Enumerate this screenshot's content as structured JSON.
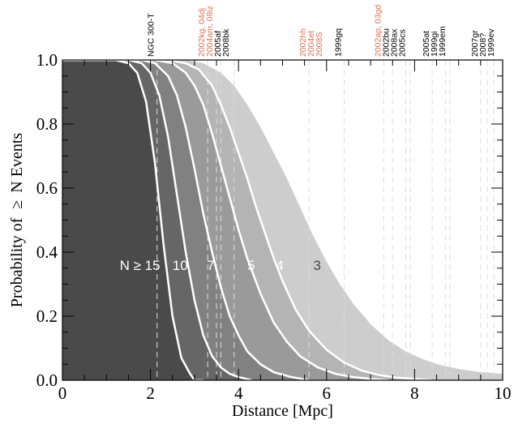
{
  "chart_data": {
    "type": "area",
    "xlabel": "Distance [Mpc]",
    "ylabel_prefix": "Probability of",
    "ylabel_symbol": "≥",
    "ylabel_suffix": "N Events",
    "xlim": [
      0,
      10
    ],
    "ylim": [
      0,
      1
    ],
    "x_ticks": [
      0,
      2,
      4,
      6,
      8,
      10
    ],
    "x_tick_labels": [
      "0",
      "2",
      "4",
      "6",
      "8",
      "10"
    ],
    "y_ticks": [
      0,
      0.2,
      0.4,
      0.6,
      0.8,
      1.0
    ],
    "y_tick_labels": [
      "0.0",
      "0.2",
      "0.4",
      "0.6",
      "0.8",
      "1.0"
    ],
    "x_minor_step": 0.5,
    "y_minor_step": 0.05,
    "curves": [
      {
        "label": "N ≥ 15",
        "label_x": 1.3,
        "label_y": 0.36,
        "fill": "#4a4a4a",
        "label_color": "#ffffff",
        "x": [
          0,
          1.2,
          1.5,
          1.7,
          1.9,
          2.1,
          2.3,
          2.5,
          2.7,
          2.9,
          3.0,
          3.2
        ],
        "y": [
          1.0,
          1.0,
          0.99,
          0.96,
          0.87,
          0.68,
          0.42,
          0.2,
          0.07,
          0.02,
          0.0,
          0.0
        ]
      },
      {
        "label": "10",
        "label_x": 2.5,
        "label_y": 0.36,
        "fill": "#666666",
        "label_color": "#ffffff",
        "x": [
          0,
          1.5,
          1.8,
          2.0,
          2.2,
          2.4,
          2.6,
          2.8,
          3.0,
          3.2,
          3.4,
          3.6,
          3.8,
          4.0,
          4.3
        ],
        "y": [
          1.0,
          1.0,
          0.99,
          0.96,
          0.89,
          0.76,
          0.58,
          0.4,
          0.25,
          0.14,
          0.075,
          0.04,
          0.02,
          0.01,
          0.0
        ]
      },
      {
        "label": "7",
        "label_x": 3.28,
        "label_y": 0.36,
        "fill": "#818181",
        "label_color": "#ffffff",
        "x": [
          0,
          1.8,
          2.1,
          2.4,
          2.6,
          2.8,
          3.0,
          3.2,
          3.4,
          3.6,
          3.8,
          4.0,
          4.2,
          4.5,
          4.8,
          5.2,
          5.6
        ],
        "y": [
          1.0,
          1.0,
          0.99,
          0.95,
          0.89,
          0.79,
          0.66,
          0.52,
          0.4,
          0.29,
          0.2,
          0.14,
          0.09,
          0.05,
          0.025,
          0.01,
          0.0
        ]
      },
      {
        "label": "5",
        "label_x": 4.2,
        "label_y": 0.36,
        "fill": "#9a9a9a",
        "label_color": "#ffffff",
        "x": [
          0,
          2.1,
          2.5,
          2.8,
          3.0,
          3.2,
          3.4,
          3.6,
          3.8,
          4.0,
          4.2,
          4.5,
          4.8,
          5.1,
          5.4,
          5.8,
          6.2,
          6.6,
          7.0,
          7.4
        ],
        "y": [
          1.0,
          1.0,
          0.99,
          0.96,
          0.92,
          0.86,
          0.77,
          0.67,
          0.57,
          0.47,
          0.38,
          0.27,
          0.18,
          0.12,
          0.075,
          0.04,
          0.02,
          0.01,
          0.004,
          0.0
        ]
      },
      {
        "label": "4",
        "label_x": 4.85,
        "label_y": 0.36,
        "fill": "#b4b4b4",
        "label_color": "#ffffff",
        "x": [
          0,
          2.4,
          2.8,
          3.1,
          3.4,
          3.6,
          3.8,
          4.0,
          4.2,
          4.4,
          4.6,
          4.8,
          5.0,
          5.3,
          5.6,
          6.0,
          6.4,
          6.8,
          7.2,
          7.6,
          8.0,
          8.4
        ],
        "y": [
          1.0,
          1.0,
          0.99,
          0.97,
          0.92,
          0.86,
          0.79,
          0.71,
          0.63,
          0.54,
          0.46,
          0.38,
          0.31,
          0.22,
          0.155,
          0.095,
          0.055,
          0.03,
          0.016,
          0.008,
          0.004,
          0.0
        ]
      },
      {
        "label": "3",
        "label_x": 5.7,
        "label_y": 0.36,
        "fill": "#cdcdcd",
        "label_color": "#444444",
        "outline": false,
        "x": [
          0,
          2.8,
          3.2,
          3.6,
          3.9,
          4.2,
          4.5,
          4.8,
          5.1,
          5.4,
          5.7,
          6.0,
          6.3,
          6.6,
          7.0,
          7.4,
          7.8,
          8.2,
          8.6,
          9.0,
          9.5,
          10.0
        ],
        "y": [
          1.0,
          1.0,
          0.99,
          0.96,
          0.92,
          0.86,
          0.79,
          0.71,
          0.63,
          0.54,
          0.45,
          0.37,
          0.3,
          0.24,
          0.175,
          0.125,
          0.09,
          0.065,
          0.047,
          0.035,
          0.025,
          0.02
        ]
      }
    ],
    "events": [
      {
        "x": 2.15,
        "lines": [
          {
            "text": "NGC 300-T",
            "color": "#000000"
          }
        ]
      },
      {
        "x": 3.3,
        "lines": [
          {
            "text": "2002kg, 04dj",
            "color": "#e07050"
          },
          {
            "text": "2004am, 08iz",
            "color": "#e07050"
          },
          {
            "text": "2005af",
            "color": "#000000"
          },
          {
            "text": "2008bk",
            "color": "#000000"
          }
        ]
      },
      {
        "x": 3.5,
        "lines": []
      },
      {
        "x": 3.6,
        "lines": []
      },
      {
        "x": 3.9,
        "lines": []
      },
      {
        "x": 5.6,
        "lines": [
          {
            "text": "2002hh",
            "color": "#e07050"
          },
          {
            "text": "2004et",
            "color": "#e07050"
          },
          {
            "text": "2008S",
            "color": "#e07050"
          }
        ]
      },
      {
        "x": 6.4,
        "lines": [
          {
            "text": "1999gq",
            "color": "#000000"
          }
        ]
      },
      {
        "x": 7.3,
        "lines": [
          {
            "text": "2002ap, 03gd",
            "color": "#e07050"
          },
          {
            "text": "2002bu",
            "color": "#000000"
          },
          {
            "text": "2008ax",
            "color": "#000000"
          },
          {
            "text": "2005cs",
            "color": "#000000"
          }
        ]
      },
      {
        "x": 7.5,
        "lines": []
      },
      {
        "x": 7.8,
        "lines": []
      },
      {
        "x": 7.9,
        "lines": []
      },
      {
        "x": 8.4,
        "lines": [
          {
            "text": "2005at",
            "color": "#000000"
          },
          {
            "text": "1999gi",
            "color": "#000000"
          },
          {
            "text": "1999em",
            "color": "#000000"
          }
        ]
      },
      {
        "x": 8.7,
        "lines": []
      },
      {
        "x": 8.8,
        "lines": []
      },
      {
        "x": 9.5,
        "lines": [
          {
            "text": "2007gr",
            "color": "#000000"
          },
          {
            "text": "2008?",
            "color": "#000000"
          },
          {
            "text": "1999ev",
            "color": "#000000"
          }
        ]
      },
      {
        "x": 9.65,
        "lines": []
      },
      {
        "x": 9.8,
        "lines": []
      }
    ]
  }
}
